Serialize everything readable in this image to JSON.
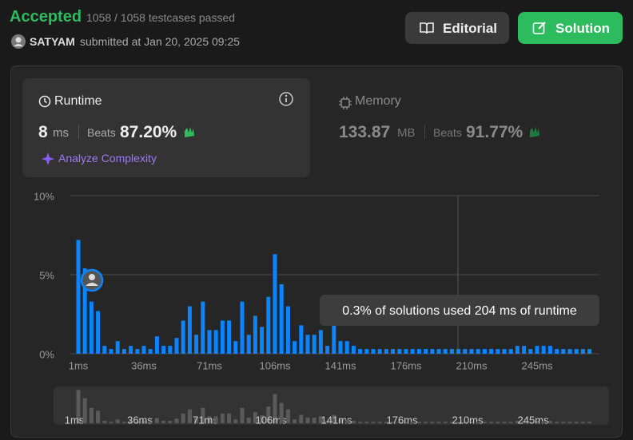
{
  "header": {
    "status": "Accepted",
    "testcases": "1058 / 1058 testcases passed",
    "user": "SATYAM",
    "submitted": "submitted at Jan 20, 2025 09:25"
  },
  "buttons": {
    "editorial": "Editorial",
    "solution": "Solution"
  },
  "runtime": {
    "title": "Runtime",
    "value": "8",
    "unit": "ms",
    "beats_label": "Beats",
    "beats": "87.20%",
    "analyze": "Analyze Complexity"
  },
  "memory": {
    "title": "Memory",
    "value": "133.87",
    "unit": "MB",
    "beats_label": "Beats",
    "beats": "91.77%"
  },
  "chart_data": {
    "type": "bar",
    "color": "#0a84ff",
    "categories": [
      "1ms",
      null,
      null,
      null,
      null,
      null,
      null,
      null,
      null,
      null,
      "36ms",
      null,
      null,
      null,
      null,
      null,
      null,
      null,
      null,
      null,
      "71ms",
      null,
      null,
      null,
      null,
      null,
      null,
      null,
      null,
      null,
      "106ms",
      null,
      null,
      null,
      null,
      null,
      null,
      null,
      null,
      null,
      "141ms",
      null,
      null,
      null,
      null,
      null,
      null,
      null,
      null,
      null,
      "176ms",
      null,
      null,
      null,
      null,
      null,
      null,
      null,
      null,
      null,
      "210ms",
      null,
      null,
      null,
      null,
      null,
      null,
      null,
      null,
      null,
      "245ms",
      null,
      null,
      null,
      null,
      null,
      null,
      null,
      null
    ],
    "values": [
      7.2,
      5.4,
      3.3,
      2.7,
      0.5,
      0.3,
      0.8,
      0.3,
      0.5,
      0.3,
      0.5,
      0.3,
      1.1,
      0.5,
      0.5,
      1.0,
      2.1,
      3.0,
      1.2,
      3.3,
      1.5,
      1.5,
      2.1,
      2.1,
      0.8,
      3.3,
      1.2,
      2.4,
      1.7,
      3.6,
      6.3,
      4.4,
      3.0,
      0.8,
      1.8,
      1.2,
      1.2,
      1.5,
      0.5,
      1.8,
      0.8,
      0.8,
      0.5,
      0.3,
      0.3,
      0.3,
      0.3,
      0.3,
      0.3,
      0.3,
      0.3,
      0.3,
      0.3,
      0.3,
      0.3,
      0.3,
      0.3,
      0.3,
      0.3,
      0.3,
      0.3,
      0.3,
      0.3,
      0.3,
      0.3,
      0.3,
      0.3,
      0.5,
      0.5,
      0.3,
      0.5,
      0.5,
      0.5,
      0.3,
      0.3,
      0.3,
      0.3,
      0.3,
      0.3
    ],
    "ylim": [
      0,
      10
    ],
    "yticks": [
      {
        "value": 0,
        "label": "0%"
      },
      {
        "value": 5,
        "label": "5%"
      },
      {
        "value": 10,
        "label": "10%"
      }
    ],
    "grid": true,
    "tooltip": "0.3% of solutions used 204 ms of runtime"
  }
}
